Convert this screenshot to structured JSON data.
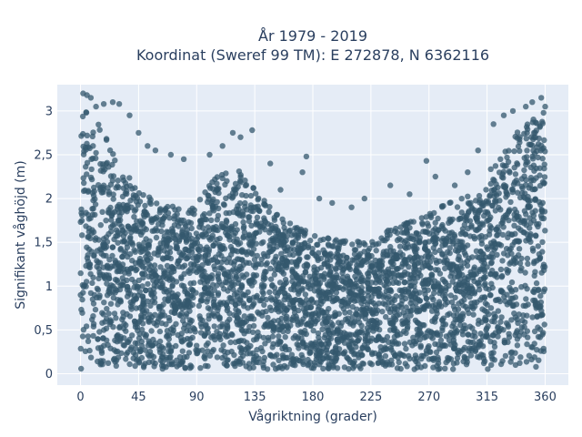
{
  "chart_data": {
    "type": "scatter",
    "title": "År 1979 - 2019",
    "subtitle": "Koordinat (Sweref 99 TM): E 272878, N 6362116",
    "xlabel": "Vågriktning (grader)",
    "ylabel": "Signifikant våghöjd (m)",
    "xlim": [
      -18,
      378
    ],
    "ylim": [
      -0.13,
      3.3
    ],
    "x_ticks": [
      0,
      45,
      90,
      135,
      180,
      225,
      270,
      315,
      360
    ],
    "x_tick_labels": [
      "0",
      "45",
      "90",
      "135",
      "180",
      "225",
      "270",
      "315",
      "360"
    ],
    "y_ticks": [
      0,
      0.5,
      1,
      1.5,
      2,
      2.5,
      3
    ],
    "y_tick_labels": [
      "0",
      "0,5",
      "1",
      "1,5",
      "2",
      "2,5",
      "3"
    ],
    "grid": true,
    "legend": "none",
    "series": [
      {
        "color": "#34586e",
        "envelope": {
          "x": [
            0,
            10,
            20,
            30,
            45,
            60,
            75,
            90,
            105,
            120,
            135,
            150,
            165,
            180,
            195,
            210,
            225,
            240,
            255,
            270,
            285,
            300,
            315,
            330,
            345,
            360
          ],
          "ymin": [
            0.05,
            0.05,
            0.05,
            0.05,
            0.05,
            0.05,
            0.05,
            0.05,
            0.05,
            0.05,
            0.05,
            0.05,
            0.05,
            0.05,
            0.05,
            0.05,
            0.05,
            0.05,
            0.05,
            0.05,
            0.05,
            0.05,
            0.05,
            0.05,
            0.05,
            0.05
          ],
          "ymax": [
            3.1,
            2.95,
            2.7,
            2.4,
            2.1,
            1.95,
            1.9,
            1.95,
            2.25,
            2.35,
            2.15,
            1.85,
            1.7,
            1.6,
            1.55,
            1.5,
            1.55,
            1.65,
            1.75,
            1.85,
            1.95,
            2.05,
            2.3,
            2.6,
            2.9,
            3.0
          ]
        },
        "outliers": [
          {
            "x": 2,
            "y": 3.2
          },
          {
            "x": 5,
            "y": 3.18
          },
          {
            "x": 8,
            "y": 3.15
          },
          {
            "x": 12,
            "y": 3.05
          },
          {
            "x": 18,
            "y": 3.08
          },
          {
            "x": 25,
            "y": 3.1
          },
          {
            "x": 30,
            "y": 3.08
          },
          {
            "x": 38,
            "y": 2.95
          },
          {
            "x": 45,
            "y": 2.75
          },
          {
            "x": 52,
            "y": 2.6
          },
          {
            "x": 58,
            "y": 2.55
          },
          {
            "x": 70,
            "y": 2.5
          },
          {
            "x": 80,
            "y": 2.45
          },
          {
            "x": 100,
            "y": 2.5
          },
          {
            "x": 110,
            "y": 2.6
          },
          {
            "x": 118,
            "y": 2.75
          },
          {
            "x": 124,
            "y": 2.7
          },
          {
            "x": 133,
            "y": 2.78
          },
          {
            "x": 147,
            "y": 2.4
          },
          {
            "x": 155,
            "y": 2.1
          },
          {
            "x": 175,
            "y": 2.48
          },
          {
            "x": 172,
            "y": 2.3
          },
          {
            "x": 185,
            "y": 2.0
          },
          {
            "x": 195,
            "y": 1.95
          },
          {
            "x": 210,
            "y": 1.9
          },
          {
            "x": 220,
            "y": 2.0
          },
          {
            "x": 240,
            "y": 2.15
          },
          {
            "x": 255,
            "y": 2.05
          },
          {
            "x": 268,
            "y": 2.43
          },
          {
            "x": 275,
            "y": 2.25
          },
          {
            "x": 290,
            "y": 2.15
          },
          {
            "x": 300,
            "y": 2.3
          },
          {
            "x": 308,
            "y": 2.55
          },
          {
            "x": 320,
            "y": 2.85
          },
          {
            "x": 328,
            "y": 2.95
          },
          {
            "x": 335,
            "y": 3.0
          },
          {
            "x": 345,
            "y": 3.05
          },
          {
            "x": 350,
            "y": 3.1
          },
          {
            "x": 357,
            "y": 3.15
          },
          {
            "x": 360,
            "y": 3.05
          }
        ]
      }
    ]
  }
}
